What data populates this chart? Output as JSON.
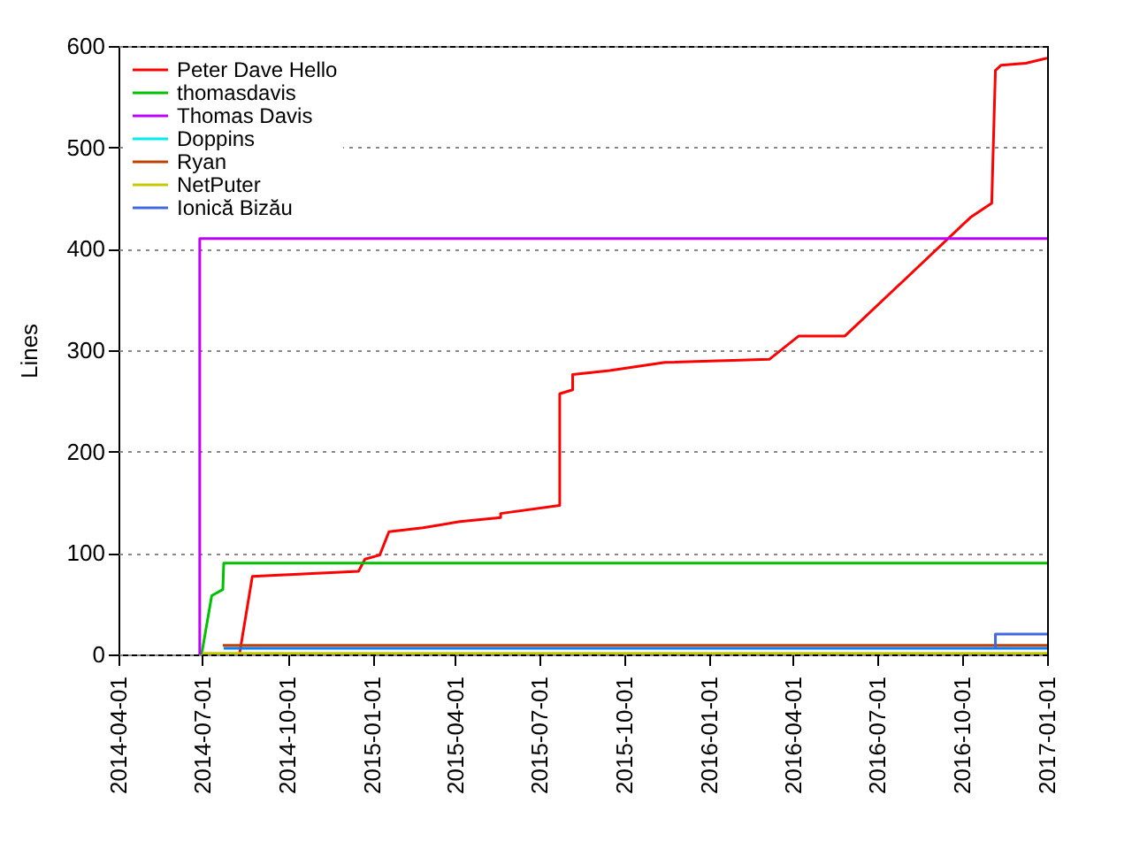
{
  "chart_data": {
    "type": "line",
    "ylabel": "Lines",
    "xlim": [
      "2014-04-01",
      "2017-01-01"
    ],
    "xticks": [
      "2014-04-01",
      "2014-07-01",
      "2014-10-01",
      "2015-01-01",
      "2015-04-01",
      "2015-07-01",
      "2015-10-01",
      "2016-01-01",
      "2016-04-01",
      "2016-07-01",
      "2016-10-01",
      "2017-01-01"
    ],
    "ylim": [
      0,
      600
    ],
    "yticks": [
      0,
      100,
      200,
      300,
      400,
      500,
      600
    ],
    "grid": "y",
    "legend": "top left",
    "line_style": "solid",
    "series": [
      {
        "name": "Peter Dave Hello",
        "color": "#ff0000",
        "x": [
          "2014-08-10",
          "2014-08-24",
          "2014-12-17",
          "2014-12-24",
          "2015-01-09",
          "2015-01-19",
          "2015-02-25",
          "2015-04-06",
          "2015-05-20",
          "2015-05-20",
          "2015-07-23",
          "2015-07-23",
          "2015-08-06",
          "2015-08-06",
          "2015-09-15",
          "2015-11-14",
          "2016-03-06",
          "2016-04-07",
          "2016-05-27",
          "2016-10-10",
          "2016-11-02",
          "2016-11-06",
          "2016-11-12",
          "2016-12-09",
          "2017-01-01"
        ],
        "values": [
          0,
          77,
          82,
          94,
          98,
          121,
          125,
          131,
          135,
          139,
          147,
          257,
          261,
          276,
          280,
          288,
          291,
          314,
          314,
          431,
          445,
          576,
          581,
          583,
          588
        ]
      },
      {
        "name": "thomasdavis",
        "color": "#00c000",
        "x": [
          "2014-06-30",
          "2014-07-11",
          "2014-07-23",
          "2014-07-24",
          "2017-01-01"
        ],
        "values": [
          0,
          58,
          64,
          90,
          90
        ]
      },
      {
        "color": "#0080ff",
        "x": [
          "2014-07-24",
          "2017-01-01"
        ],
        "values": [
          6,
          6
        ]
      },
      {
        "name": "Thomas Davis",
        "color": "#c000ff",
        "x": [
          "2014-06-28",
          "2014-06-28",
          "2017-01-01"
        ],
        "values": [
          0,
          410,
          410
        ]
      },
      {
        "name": "Doppins",
        "color": "#00eeee"
      },
      {
        "name": "Ryan",
        "color": "#c04000",
        "x": [
          "2014-07-23",
          "2017-01-01"
        ],
        "values": [
          9,
          9
        ]
      },
      {
        "name": "NetPuter",
        "color": "#c8c800",
        "x": [
          "2014-07-01",
          "2017-01-01"
        ],
        "values": [
          1,
          1
        ]
      },
      {
        "name": "Ionică Bizău",
        "color": "#4169e1",
        "x": [
          "2016-11-06",
          "2016-11-06",
          "2017-01-01"
        ],
        "values": [
          6,
          20,
          20
        ]
      }
    ]
  }
}
